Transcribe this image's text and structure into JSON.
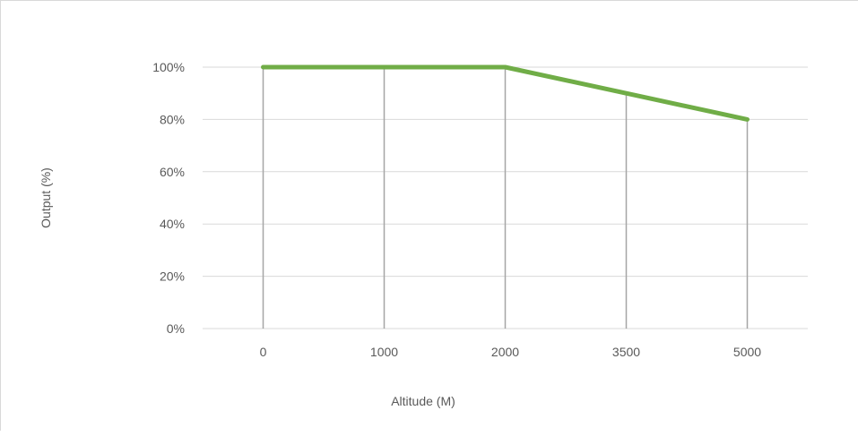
{
  "chart_data": {
    "type": "line",
    "categories": [
      "0",
      "1000",
      "2000",
      "3500",
      "5000"
    ],
    "series": [
      {
        "values": [
          100,
          100,
          100,
          90,
          80
        ],
        "color": "#70ad47"
      }
    ],
    "xlabel": "Altitude (M)",
    "ylabel": "Output (%)",
    "ylim": [
      0,
      100
    ],
    "yticks": [
      "0%",
      "20%",
      "40%",
      "60%",
      "80%",
      "100%"
    ],
    "grid": "horizontal",
    "drop_lines": true
  }
}
